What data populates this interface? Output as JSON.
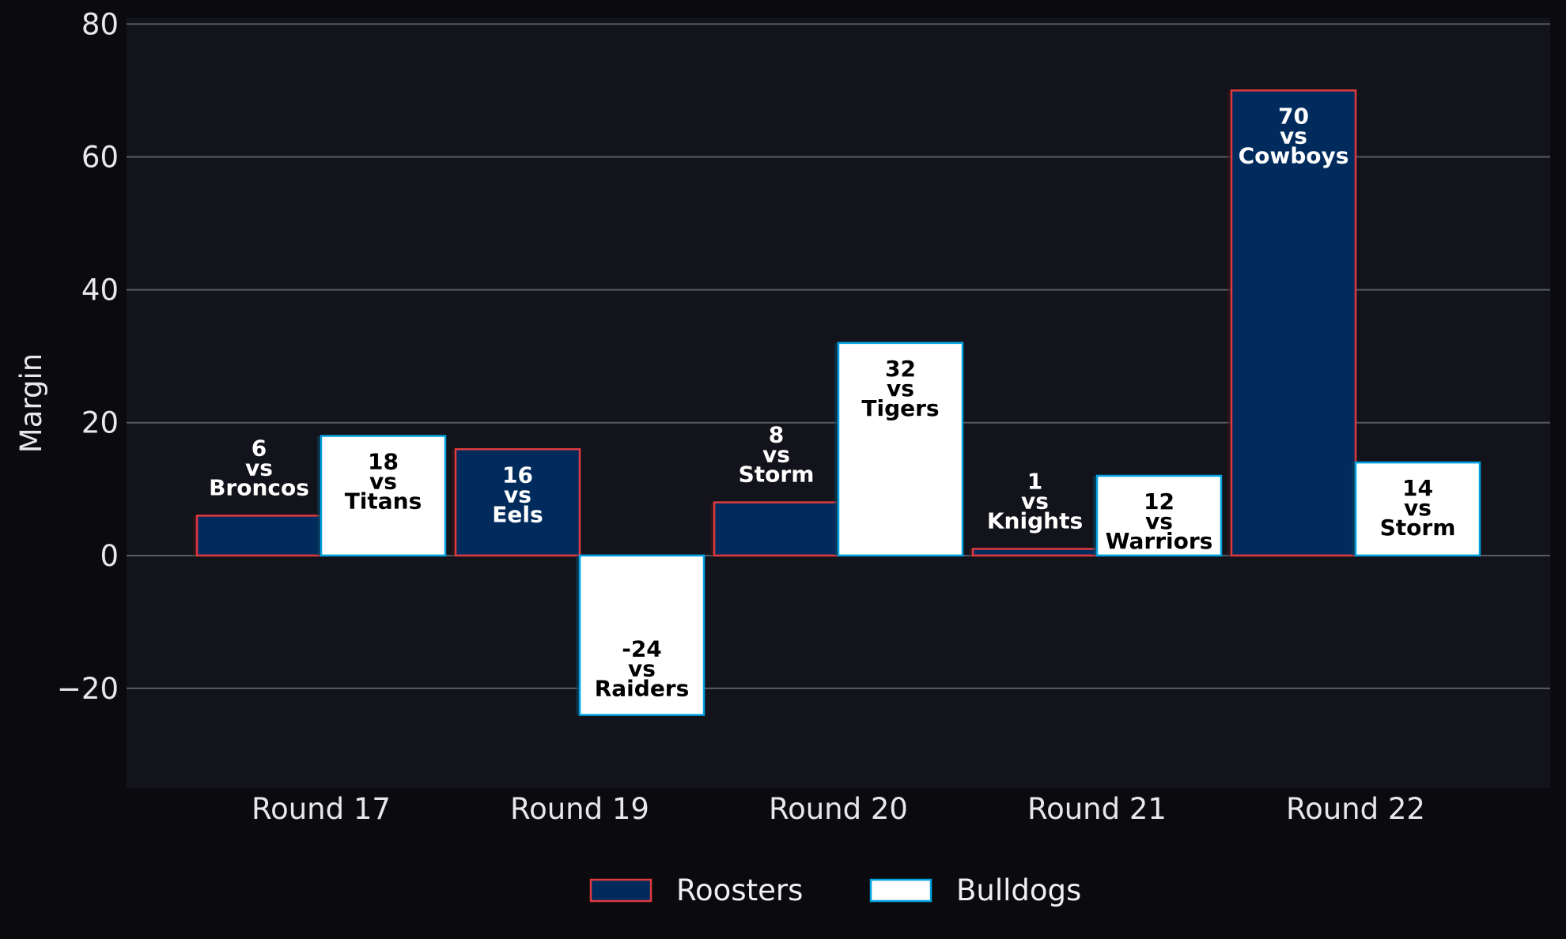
{
  "chart_data": {
    "type": "bar",
    "ylabel": "Margin",
    "xlabel": "",
    "ylim": [
      -35,
      81
    ],
    "yticks": [
      -20,
      0,
      20,
      40,
      60,
      80
    ],
    "ytick_labels": [
      "−20",
      "0",
      "20",
      "40",
      "60",
      "80"
    ],
    "grid": "horizontal",
    "legend_placement": "bottom-center",
    "categories": [
      "Round 17",
      "Round 19",
      "Round 20",
      "Round 21",
      "Round 22"
    ],
    "series": [
      {
        "name": "Roosters",
        "color": "#002b5c",
        "edge_color": "#e03a3e",
        "values": [
          6,
          16,
          8,
          1,
          70
        ],
        "labels": [
          [
            "6",
            "vs",
            "Broncos"
          ],
          [
            "16",
            "vs",
            "Eels"
          ],
          [
            "8",
            "vs",
            "Storm"
          ],
          [
            "1",
            "vs",
            "Knights"
          ],
          [
            "70",
            "vs",
            "Cowboys"
          ]
        ]
      },
      {
        "name": "Bulldogs",
        "color": "#ffffff",
        "edge_color": "#00a3e0",
        "values": [
          18,
          -24,
          32,
          12,
          14
        ],
        "labels": [
          [
            "18",
            "vs",
            "Titans"
          ],
          [
            "-24",
            "vs",
            "Raiders"
          ],
          [
            "32",
            "vs",
            "Tigers"
          ],
          [
            "12",
            "vs",
            "Warriors"
          ],
          [
            "14",
            "vs",
            "Storm"
          ]
        ]
      }
    ],
    "colors": {
      "page_background": "#0b0b0f",
      "plot_background": "#12131b",
      "grid": "#5a5b62",
      "text": "#e8e8ec"
    }
  }
}
